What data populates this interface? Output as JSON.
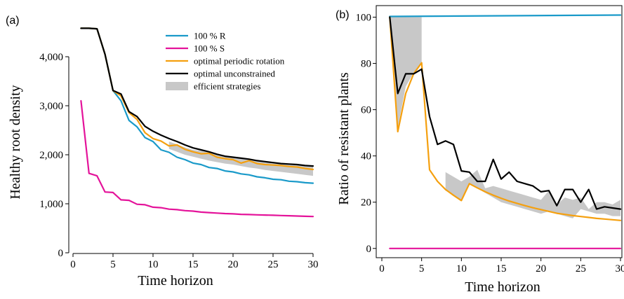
{
  "chart_data": [
    {
      "type": "line",
      "panel_label": "(a)",
      "xlabel": "Time horizon",
      "ylabel": "Healthy root density",
      "xlim": [
        0,
        30
      ],
      "ylim": [
        -200,
        4700
      ],
      "xticks": [
        0,
        5,
        10,
        15,
        20,
        25,
        30
      ],
      "xtick_labels": [
        "0",
        "5",
        "10",
        "15",
        "20",
        "25",
        "30"
      ],
      "yticks": [
        0,
        1000,
        2000,
        3000,
        4000
      ],
      "ytick_labels": [
        "0",
        "1,000",
        "2,000",
        "3,000",
        "4,000"
      ],
      "legend_position": "top-right",
      "legend": [
        {
          "label": "100 % R",
          "color": "#1a9ac9",
          "kind": "line"
        },
        {
          "label": "100 % S",
          "color": "#e4139a",
          "kind": "line"
        },
        {
          "label": "optimal periodic rotation",
          "color": "#f5a00f",
          "kind": "line"
        },
        {
          "label": "optimal unconstrained",
          "color": "#000000",
          "kind": "line"
        },
        {
          "label": "efficient strategies",
          "color": "#c8c8c8",
          "kind": "band"
        }
      ],
      "band": {
        "name": "efficient strategies",
        "color": "#c8c8c8",
        "x": [
          12,
          13,
          14,
          15,
          16,
          17,
          18,
          19,
          20,
          21,
          22,
          23,
          24,
          25,
          26,
          27,
          28,
          29,
          30
        ],
        "lower": [
          2120,
          2060,
          2000,
          1960,
          1920,
          1880,
          1850,
          1820,
          1800,
          1770,
          1740,
          1720,
          1690,
          1670,
          1650,
          1630,
          1610,
          1590,
          1570
        ],
        "upper": [
          2270,
          2210,
          2150,
          2100,
          2080,
          2040,
          2010,
          1980,
          1950,
          1930,
          1900,
          1880,
          1850,
          1830,
          1820,
          1800,
          1790,
          1780,
          1760
        ]
      },
      "series": [
        {
          "name": "100 % R",
          "color": "#1a9ac9",
          "x": [
            1,
            2,
            3,
            4,
            5,
            6,
            7,
            8,
            9,
            10,
            11,
            12,
            13,
            14,
            15,
            16,
            17,
            18,
            19,
            20,
            21,
            22,
            23,
            24,
            25,
            26,
            27,
            28,
            29,
            30
          ],
          "values": [
            4580,
            4580,
            4570,
            4050,
            3310,
            3100,
            2700,
            2570,
            2350,
            2270,
            2100,
            2050,
            1950,
            1900,
            1830,
            1800,
            1740,
            1720,
            1670,
            1650,
            1610,
            1590,
            1550,
            1530,
            1500,
            1490,
            1460,
            1450,
            1430,
            1420
          ]
        },
        {
          "name": "100 % S",
          "color": "#e4139a",
          "x": [
            1,
            2,
            3,
            4,
            5,
            6,
            7,
            8,
            9,
            10,
            11,
            12,
            13,
            14,
            15,
            16,
            17,
            18,
            19,
            20,
            21,
            22,
            23,
            24,
            25,
            26,
            27,
            28,
            29,
            30
          ],
          "values": [
            3100,
            1620,
            1570,
            1240,
            1230,
            1080,
            1070,
            990,
            980,
            930,
            920,
            890,
            880,
            860,
            850,
            830,
            820,
            810,
            800,
            795,
            785,
            780,
            775,
            770,
            765,
            760,
            755,
            750,
            745,
            740
          ]
        },
        {
          "name": "optimal periodic rotation",
          "color": "#f5a00f",
          "x": [
            1,
            2,
            3,
            4,
            5,
            6,
            7,
            8,
            9,
            10,
            11,
            12,
            13,
            14,
            15,
            16,
            17,
            18,
            19,
            20,
            21,
            22,
            23,
            24,
            25,
            26,
            27,
            28,
            29,
            30
          ],
          "values": [
            4580,
            4580,
            4570,
            4050,
            3310,
            3200,
            2860,
            2720,
            2450,
            2330,
            2280,
            2180,
            2200,
            2110,
            2060,
            2020,
            2030,
            1950,
            1920,
            1900,
            1830,
            1880,
            1820,
            1800,
            1790,
            1780,
            1760,
            1750,
            1720,
            1700
          ]
        },
        {
          "name": "optimal unconstrained",
          "color": "#000000",
          "x": [
            1,
            2,
            3,
            4,
            5,
            6,
            7,
            8,
            9,
            10,
            11,
            12,
            13,
            14,
            15,
            16,
            17,
            18,
            19,
            20,
            21,
            22,
            23,
            24,
            25,
            26,
            27,
            28,
            29,
            30
          ],
          "values": [
            4580,
            4580,
            4570,
            4050,
            3310,
            3240,
            2880,
            2780,
            2580,
            2480,
            2400,
            2330,
            2270,
            2200,
            2140,
            2100,
            2060,
            2010,
            1970,
            1950,
            1930,
            1910,
            1880,
            1860,
            1840,
            1820,
            1810,
            1800,
            1780,
            1770
          ]
        }
      ]
    },
    {
      "type": "line",
      "panel_label": "(b)",
      "xlabel": "Time horizon",
      "ylabel": "Ratio of resistant plants",
      "xlim": [
        0,
        30
      ],
      "ylim": [
        -4,
        105
      ],
      "xticks": [
        0,
        5,
        10,
        15,
        20,
        25,
        30
      ],
      "xtick_labels": [
        "0",
        "5",
        "10",
        "15",
        "20",
        "25",
        "30"
      ],
      "yticks": [
        0,
        20,
        40,
        60,
        80,
        100
      ],
      "ytick_labels": [
        "0",
        "20",
        "40",
        "60",
        "80",
        "100"
      ],
      "bands": [
        {
          "color": "#c8c8c8",
          "x": [
            1,
            2,
            3,
            4,
            5
          ],
          "lower": [
            100,
            52,
            70,
            76,
            80
          ],
          "upper": [
            100,
            100,
            100,
            100,
            100
          ]
        },
        {
          "color": "#c8c8c8",
          "x": [
            8,
            9,
            10,
            11,
            12,
            13,
            14,
            15,
            16,
            17,
            18,
            19,
            20,
            21,
            22,
            23,
            24,
            25,
            26,
            27,
            28,
            29,
            30
          ],
          "lower": [
            25,
            23,
            21,
            28,
            26,
            24,
            22,
            20,
            19,
            18,
            17,
            16,
            15,
            16,
            15,
            14,
            13,
            17,
            16,
            15,
            15,
            14,
            14
          ],
          "upper": [
            33,
            31,
            29,
            31,
            34,
            26,
            27,
            26,
            25,
            24,
            23,
            22,
            21,
            25,
            19,
            22,
            21,
            22,
            17,
            20,
            20,
            19,
            21
          ]
        }
      ],
      "series": [
        {
          "name": "100 % R",
          "color": "#1a9ac9",
          "x": [
            1,
            30
          ],
          "values": [
            100.3,
            100.9
          ]
        },
        {
          "name": "100 % S",
          "color": "#e4139a",
          "x": [
            1,
            30
          ],
          "values": [
            0,
            0
          ]
        },
        {
          "name": "optimal periodic rotation",
          "color": "#f5a00f",
          "x": [
            1,
            2,
            3,
            4,
            5,
            6,
            7,
            8,
            9,
            10,
            11,
            12,
            13,
            14,
            15,
            16,
            17,
            18,
            19,
            20,
            21,
            22,
            23,
            24,
            25,
            26,
            27,
            28,
            29,
            30
          ],
          "values": [
            100,
            50.5,
            67,
            75.5,
            80.3,
            34,
            29,
            25.5,
            23,
            20.7,
            28,
            26.2,
            24.5,
            23,
            21.7,
            20.5,
            19.5,
            18.5,
            17.6,
            16.8,
            16,
            15.2,
            14.7,
            14.2,
            13.8,
            13.4,
            13,
            12.7,
            12.4,
            12.1
          ]
        },
        {
          "name": "optimal unconstrained",
          "color": "#000000",
          "x": [
            1,
            2,
            3,
            4,
            5,
            6,
            7,
            8,
            9,
            10,
            11,
            12,
            13,
            14,
            15,
            16,
            17,
            18,
            19,
            20,
            21,
            22,
            23,
            24,
            25,
            26,
            27,
            28,
            29,
            30
          ],
          "values": [
            100,
            67,
            75.5,
            75.5,
            77.5,
            57,
            45,
            46.5,
            45,
            33.5,
            33,
            29,
            29,
            38.5,
            30,
            33,
            29,
            28,
            27,
            24.5,
            25,
            18.5,
            25.5,
            25.5,
            20,
            25.5,
            17,
            18,
            17.5,
            17
          ]
        }
      ]
    }
  ]
}
